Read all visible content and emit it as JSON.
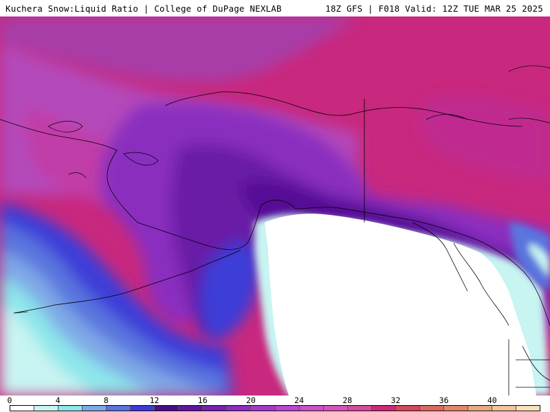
{
  "header": {
    "left_title": "Kuchera Snow:Liquid Ratio | College of DuPage NEXLAB",
    "right_title": "18Z GFS | F018 Valid: 12Z TUE MAR 25 2025"
  },
  "map": {
    "region": "Alaska and Gulf of Alaska",
    "background_color": "#ffffff",
    "boundary_color": "#000000"
  },
  "colorbar": {
    "tick_labels": [
      "0",
      "4",
      "8",
      "12",
      "16",
      "20",
      "24",
      "28",
      "32",
      "36",
      "40"
    ],
    "colors": [
      "#ffffff",
      "#c8f4f2",
      "#8de6ea",
      "#7fa8e6",
      "#5a74de",
      "#3c3cd8",
      "#4a0d88",
      "#5e179c",
      "#7422b0",
      "#8a2fc0",
      "#a33bc8",
      "#b848cc",
      "#c853c6",
      "#d256b8",
      "#d24c9e",
      "#c82a78",
      "#d04a5c",
      "#d86a62",
      "#e0886e",
      "#e8a884",
      "#f0c49c",
      "#f8e0bc"
    ]
  }
}
